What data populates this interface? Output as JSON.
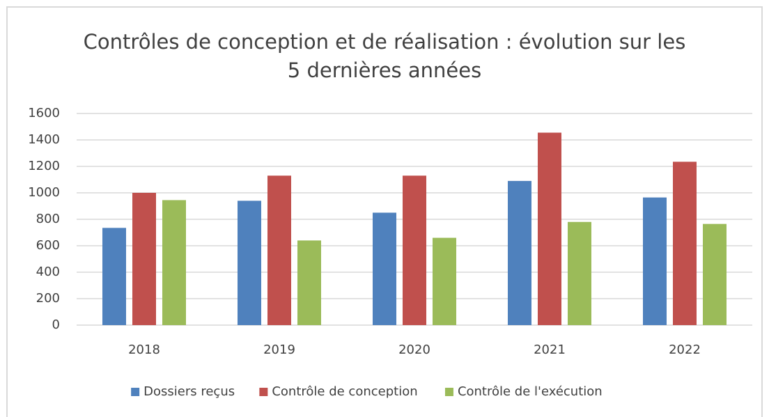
{
  "chart_data": {
    "type": "bar",
    "title": "Contrôles de conception et de réalisation : évolution sur les 5 dernières années",
    "categories": [
      "2018",
      "2019",
      "2020",
      "2021",
      "2022"
    ],
    "series": [
      {
        "name": "Dossiers reçus",
        "color": "#4f81bd",
        "values": [
          735,
          940,
          850,
          1090,
          965
        ]
      },
      {
        "name": "Contrôle de conception",
        "color": "#c0504d",
        "values": [
          1000,
          1130,
          1130,
          1455,
          1235
        ]
      },
      {
        "name": "Contrôle de l'exécution",
        "color": "#9bbb59",
        "values": [
          945,
          640,
          660,
          780,
          765
        ]
      }
    ],
    "ylim": [
      0,
      1600
    ],
    "yticks": [
      0,
      200,
      400,
      600,
      800,
      1000,
      1200,
      1400,
      1600
    ],
    "grid": true,
    "legend": "bottom"
  }
}
